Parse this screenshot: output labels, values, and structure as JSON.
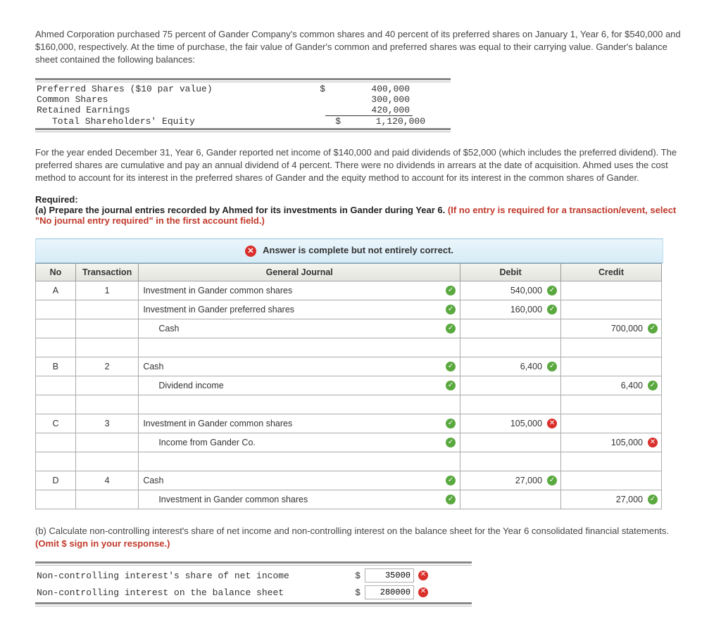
{
  "intro_para1": "Ahmed Corporation purchased 75 percent of Gander Company's common shares and 40 percent of its preferred shares on January 1, Year 6, for $540,000 and $160,000, respectively. At the time of purchase, the fair value of Gander's common and preferred shares was equal to their carrying value. Gander's balance sheet contained the following balances:",
  "balance_rows": [
    {
      "label": "Preferred Shares ($10 par value)",
      "cur": "$",
      "amt": "400,000",
      "indent": false
    },
    {
      "label": "Common Shares",
      "cur": "",
      "amt": "300,000",
      "indent": false
    },
    {
      "label": "Retained Earnings",
      "cur": "",
      "amt": "420,000",
      "indent": false,
      "underline": true
    },
    {
      "label": "Total Shareholders' Equity",
      "cur": "$",
      "amt": "1,120,000",
      "indent": true
    }
  ],
  "intro_para2": "For the year ended December 31, Year 6, Gander reported net income of $140,000 and paid dividends of $52,000 (which includes the preferred dividend). The preferred shares are cumulative and pay an annual dividend of 4 percent. There were no dividends in arrears at the date of acquisition. Ahmed uses the cost method to account for its interest in the preferred shares of Gander and the equity method to account for its interest in the common shares of Gander.",
  "required_label": "Required:",
  "required_a": "(a) Prepare the journal entries recorded by Ahmed for its investments in Gander during Year 6. ",
  "required_a_red": "(If no entry is required for a transaction/event, select \"No journal entry required\" in the first account field.)",
  "banner": "Answer is complete but not entirely correct.",
  "journal_headers": {
    "no": "No",
    "txn": "Transaction",
    "gj": "General Journal",
    "debit": "Debit",
    "credit": "Credit"
  },
  "journal_rows": [
    {
      "no": "A",
      "txn": "1",
      "gj": "Investment in Gander common shares",
      "gj_mark": "ok",
      "debit": "540,000",
      "debit_mark": "ok",
      "credit": "",
      "credit_mark": ""
    },
    {
      "no": "",
      "txn": "",
      "gj": "Investment in Gander preferred shares",
      "gj_mark": "ok",
      "debit": "160,000",
      "debit_mark": "ok",
      "credit": "",
      "credit_mark": ""
    },
    {
      "no": "",
      "txn": "",
      "gj": "Cash",
      "gj_indent": true,
      "gj_mark": "ok",
      "debit": "",
      "debit_mark": "",
      "credit": "700,000",
      "credit_mark": "ok"
    },
    {
      "spacer": true
    },
    {
      "no": "B",
      "txn": "2",
      "gj": "Cash",
      "gj_mark": "ok",
      "debit": "6,400",
      "debit_mark": "ok",
      "credit": "",
      "credit_mark": ""
    },
    {
      "no": "",
      "txn": "",
      "gj": "Dividend income",
      "gj_indent": true,
      "gj_mark": "ok",
      "debit": "",
      "debit_mark": "",
      "credit": "6,400",
      "credit_mark": "ok"
    },
    {
      "spacer": true
    },
    {
      "no": "C",
      "txn": "3",
      "gj": "Investment in Gander common shares",
      "gj_mark": "ok",
      "debit": "105,000",
      "debit_mark": "bad",
      "credit": "",
      "credit_mark": ""
    },
    {
      "no": "",
      "txn": "",
      "gj": "Income from Gander Co.",
      "gj_indent": true,
      "gj_mark": "ok",
      "debit": "",
      "debit_mark": "",
      "credit": "105,000",
      "credit_mark": "bad"
    },
    {
      "spacer": true
    },
    {
      "no": "D",
      "txn": "4",
      "gj": "Cash",
      "gj_mark": "ok",
      "debit": "27,000",
      "debit_mark": "ok",
      "credit": "",
      "credit_mark": ""
    },
    {
      "no": "",
      "txn": "",
      "gj": "Investment in Gander common shares",
      "gj_indent": true,
      "gj_mark": "ok",
      "debit": "",
      "debit_mark": "",
      "credit": "27,000",
      "credit_mark": "ok"
    }
  ],
  "partb_text": "(b) Calculate non-controlling interest's share of net income and non-controlling interest on the balance sheet for the Year 6 consolidated financial statements. ",
  "partb_red": "(Omit $ sign in your response.)",
  "nci_rows": [
    {
      "label": "Non-controlling interest's share of net income",
      "cur": "$",
      "value": "35000",
      "mark": "bad"
    },
    {
      "label": "Non-controlling interest on the balance sheet",
      "cur": "$",
      "value": "280000",
      "mark": "bad"
    }
  ]
}
